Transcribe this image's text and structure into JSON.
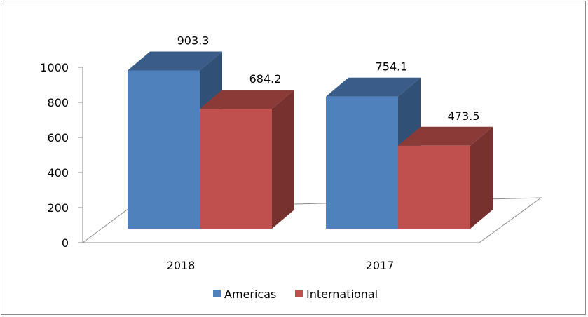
{
  "chart_data": {
    "type": "bar",
    "style": "3d-clustered-column",
    "categories": [
      "2018",
      "2017"
    ],
    "series": [
      {
        "name": "Americas",
        "values": [
          903.3,
          754.1
        ],
        "color": "#4f81bd"
      },
      {
        "name": "International",
        "values": [
          684.2,
          473.5
        ],
        "color": "#c0504d"
      }
    ],
    "data_labels": [
      [
        "903.3",
        "754.1"
      ],
      [
        "684.2",
        "473.5"
      ]
    ],
    "ylim": [
      0,
      1000
    ],
    "yticks": [
      "0",
      "200",
      "400",
      "600",
      "800",
      "1000"
    ],
    "title": "",
    "xlabel": "",
    "ylabel": "",
    "grid": false,
    "legend_position": "bottom"
  }
}
